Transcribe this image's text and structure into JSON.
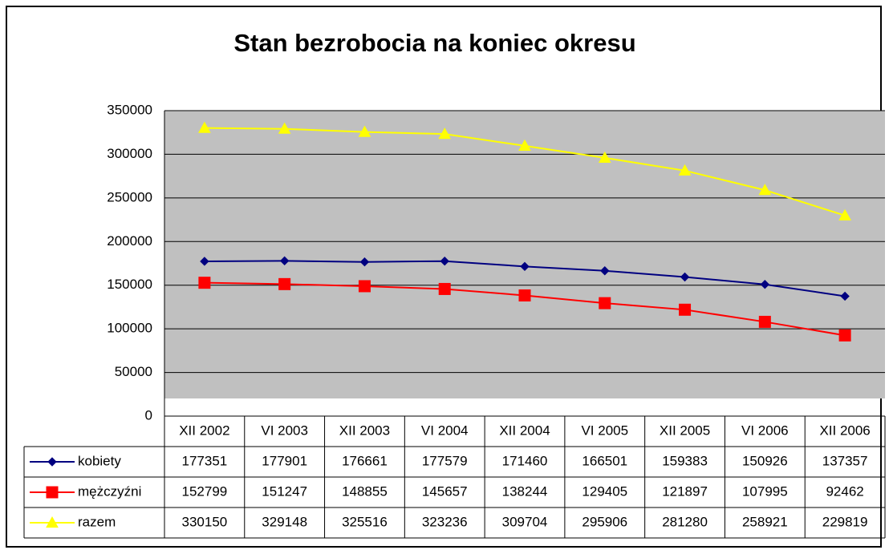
{
  "chart_data": {
    "type": "line",
    "title": "Stan bezrobocia na koniec okresu",
    "categories": [
      "XII 2002",
      "VI 2003",
      "XII 2003",
      "VI 2004",
      "XII 2004",
      "VI 2005",
      "XII 2005",
      "VI 2006",
      "XII 2006"
    ],
    "series": [
      {
        "name": "kobiety",
        "color": "#000080",
        "marker": "diamond",
        "values": [
          177351,
          177901,
          176661,
          177579,
          171460,
          166501,
          159383,
          150926,
          137357
        ]
      },
      {
        "name": "mężczyźni",
        "color": "#ff0000",
        "marker": "square",
        "values": [
          152799,
          151247,
          148855,
          145657,
          138244,
          129405,
          121897,
          107995,
          92462
        ]
      },
      {
        "name": "razem",
        "color": "#ffff00",
        "marker": "triangle",
        "values": [
          330150,
          329148,
          325516,
          323236,
          309704,
          295906,
          281280,
          258921,
          229819
        ]
      }
    ],
    "ylim": [
      0,
      350000
    ],
    "yticks": [
      0,
      50000,
      100000,
      150000,
      200000,
      250000,
      300000,
      350000
    ],
    "grid": true,
    "plot_background": "#c0c0c0",
    "data_table": true
  }
}
